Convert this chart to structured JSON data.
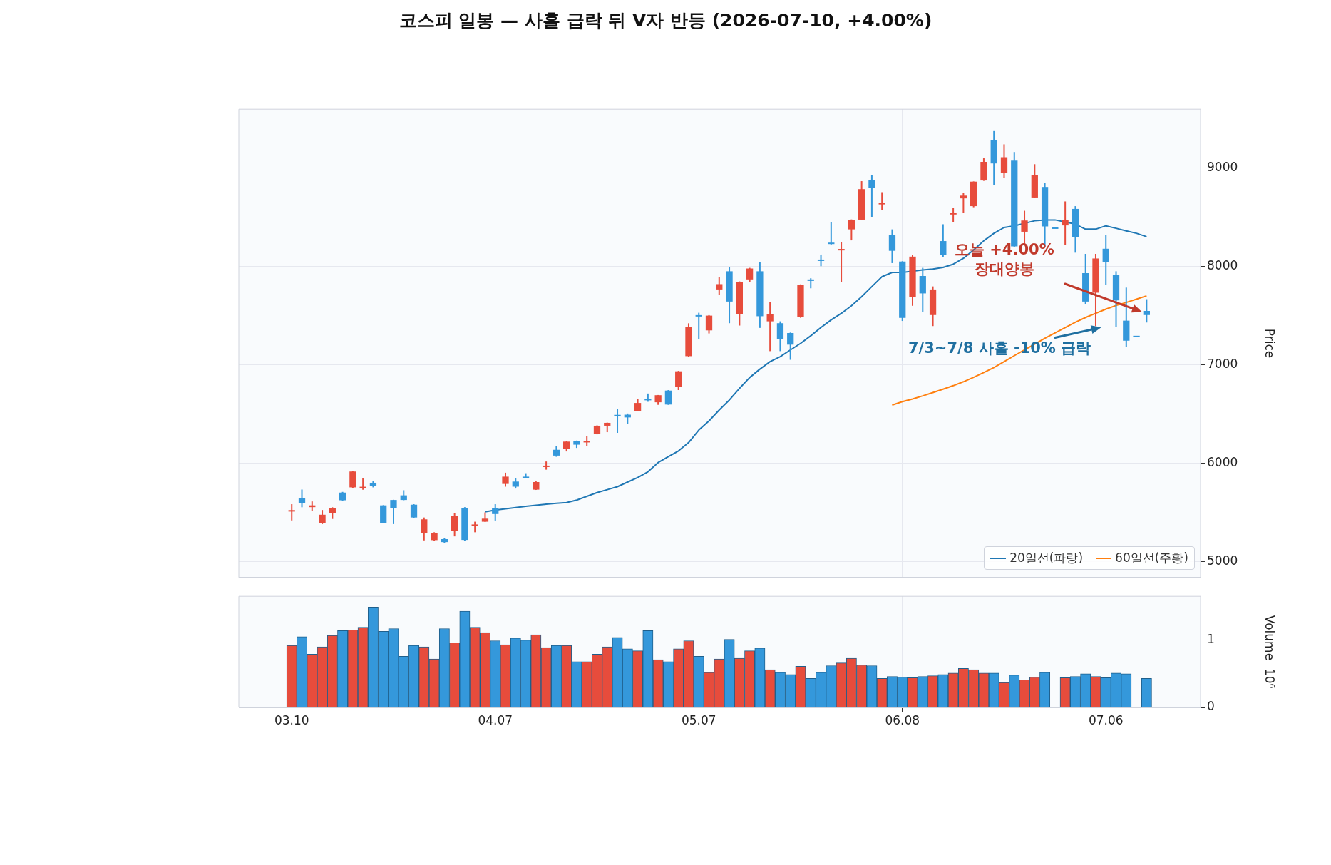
{
  "chart_data": [
    {
      "type": "candlestick",
      "title": "코스피 일봉 — 사흘 급락 뒤 V자 반등 (2026-07-10, +4.00%)",
      "ylabel": "Price",
      "categories": [
        "03.10",
        null,
        null,
        null,
        null,
        null,
        null,
        null,
        null,
        null,
        null,
        null,
        null,
        null,
        null,
        null,
        null,
        null,
        null,
        null,
        "04.07",
        null,
        null,
        null,
        null,
        null,
        null,
        null,
        null,
        null,
        null,
        null,
        null,
        null,
        null,
        null,
        null,
        null,
        null,
        null,
        "05.07",
        null,
        null,
        null,
        null,
        null,
        null,
        null,
        null,
        null,
        null,
        null,
        null,
        null,
        null,
        null,
        null,
        null,
        null,
        null,
        "06.08",
        null,
        null,
        null,
        null,
        null,
        null,
        null,
        null,
        null,
        null,
        null,
        null,
        null,
        null,
        null,
        null,
        null,
        null,
        null,
        "07.06",
        null,
        null,
        null,
        null
      ],
      "ohlc": [
        [
          5510,
          5585,
          5420,
          5525
        ],
        [
          5650,
          5734,
          5554,
          5597
        ],
        [
          5555,
          5613,
          5519,
          5573
        ],
        [
          5395,
          5526,
          5383,
          5478
        ],
        [
          5497,
          5554,
          5435,
          5545
        ],
        [
          5703,
          5710,
          5620,
          5625
        ],
        [
          5756,
          5920,
          5750,
          5917
        ],
        [
          5745,
          5846,
          5732,
          5755
        ],
        [
          5803,
          5822,
          5756,
          5768
        ],
        [
          5573,
          5575,
          5390,
          5395
        ],
        [
          5628,
          5630,
          5383,
          5545
        ],
        [
          5675,
          5727,
          5625,
          5628
        ],
        [
          5580,
          5585,
          5443,
          5450
        ],
        [
          5288,
          5450,
          5217,
          5431
        ],
        [
          5220,
          5300,
          5210,
          5290
        ],
        [
          5230,
          5240,
          5190,
          5200
        ],
        [
          5317,
          5497,
          5258,
          5466
        ],
        [
          5545,
          5555,
          5210,
          5222
        ],
        [
          5360,
          5407,
          5300,
          5372
        ],
        [
          5407,
          5502,
          5405,
          5438
        ],
        [
          5545,
          5585,
          5419,
          5485
        ],
        [
          5791,
          5905,
          5763,
          5865
        ],
        [
          5815,
          5846,
          5744,
          5763
        ],
        [
          5865,
          5900,
          5848,
          5850
        ],
        [
          5733,
          5817,
          5730,
          5810
        ],
        [
          5958,
          6019,
          5936,
          5970
        ],
        [
          6138,
          6174,
          6067,
          6079
        ],
        [
          6150,
          6225,
          6121,
          6221
        ],
        [
          6229,
          6232,
          6157,
          6190
        ],
        [
          6208,
          6276,
          6174,
          6220
        ],
        [
          6298,
          6386,
          6295,
          6383
        ],
        [
          6383,
          6414,
          6317,
          6412
        ],
        [
          6486,
          6555,
          6310,
          6480
        ],
        [
          6495,
          6507,
          6400,
          6467
        ],
        [
          6531,
          6655,
          6528,
          6614
        ],
        [
          6648,
          6710,
          6626,
          6642
        ],
        [
          6621,
          6695,
          6595,
          6693
        ],
        [
          6740,
          6745,
          6595,
          6598
        ],
        [
          6781,
          6940,
          6745,
          6936
        ],
        [
          7090,
          7424,
          7085,
          7383
        ],
        [
          7500,
          7531,
          7264,
          7490
        ],
        [
          7352,
          7507,
          7321,
          7502
        ],
        [
          7768,
          7898,
          7716,
          7822
        ],
        [
          7953,
          7995,
          7425,
          7645
        ],
        [
          7515,
          7850,
          7401,
          7846
        ],
        [
          7870,
          7988,
          7846,
          7981
        ],
        [
          7953,
          8047,
          7377,
          7496
        ],
        [
          7444,
          7638,
          7141,
          7519
        ],
        [
          7425,
          7444,
          7141,
          7266
        ],
        [
          7325,
          7330,
          7053,
          7207
        ],
        [
          7486,
          7820,
          7480,
          7815
        ],
        [
          7870,
          7882,
          7780,
          7855
        ],
        [
          8065,
          8123,
          8005,
          8052
        ],
        [
          8237,
          8450,
          8225,
          8230
        ],
        [
          8165,
          8253,
          7841,
          8180
        ],
        [
          8379,
          8480,
          8267,
          8478
        ],
        [
          8478,
          8869,
          8475,
          8788
        ],
        [
          8881,
          8928,
          8504,
          8800
        ],
        [
          8628,
          8757,
          8575,
          8640
        ],
        [
          8320,
          8379,
          8036,
          8161
        ],
        [
          8052,
          8055,
          7448,
          7479
        ],
        [
          7692,
          8118,
          7602,
          8102
        ],
        [
          7905,
          7988,
          7538,
          7728
        ],
        [
          7508,
          7799,
          7396,
          7768
        ],
        [
          8260,
          8431,
          8095,
          8118
        ],
        [
          8530,
          8599,
          8450,
          8545
        ],
        [
          8694,
          8746,
          8544,
          8722
        ],
        [
          8615,
          8866,
          8604,
          8864
        ],
        [
          8876,
          9101,
          8872,
          9065
        ],
        [
          9283,
          9378,
          8833,
          9049
        ],
        [
          8954,
          9243,
          8904,
          9112
        ],
        [
          9077,
          9165,
          8200,
          8206
        ],
        [
          8355,
          8568,
          8220,
          8469
        ],
        [
          8703,
          9041,
          8700,
          8928
        ],
        [
          8810,
          8852,
          8201,
          8409
        ],
        [
          8391,
          8391,
          8391,
          8391
        ],
        [
          8419,
          8663,
          8220,
          8473
        ],
        [
          8587,
          8615,
          8142,
          8303
        ],
        [
          7934,
          8130,
          7621,
          7645
        ],
        [
          7735,
          8130,
          7396,
          8083
        ],
        [
          8182,
          8320,
          7818,
          8047
        ],
        [
          7917,
          7953,
          7389,
          7657
        ],
        [
          7451,
          7787,
          7183,
          7247
        ],
        [
          7290,
          7290,
          7290,
          7290
        ],
        [
          7550,
          7669,
          7432,
          7508
        ]
      ],
      "colors": [
        "#e74c3c",
        "#3498db",
        "#e74c3c",
        "#e74c3c",
        "#e74c3c",
        "#3498db",
        "#e74c3c",
        "#e74c3c",
        "#3498db",
        "#3498db",
        "#3498db",
        "#3498db",
        "#3498db",
        "#e74c3c",
        "#e74c3c",
        "#3498db",
        "#e74c3c",
        "#3498db",
        "#e74c3c",
        "#e74c3c",
        "#3498db",
        "#e74c3c",
        "#3498db",
        "#3498db",
        "#e74c3c",
        "#e74c3c",
        "#3498db",
        "#e74c3c",
        "#3498db",
        "#e74c3c",
        "#e74c3c",
        "#e74c3c",
        "#3498db",
        "#3498db",
        "#e74c3c",
        "#3498db",
        "#e74c3c",
        "#3498db",
        "#e74c3c",
        "#e74c3c",
        "#3498db",
        "#e74c3c",
        "#e74c3c",
        "#3498db",
        "#e74c3c",
        "#e74c3c",
        "#3498db",
        "#e74c3c",
        "#3498db",
        "#3498db",
        "#e74c3c",
        "#3498db",
        "#3498db",
        "#3498db",
        "#e74c3c",
        "#e74c3c",
        "#e74c3c",
        "#3498db",
        "#e74c3c",
        "#3498db",
        "#3498db",
        "#e74c3c",
        "#3498db",
        "#e74c3c",
        "#3498db",
        "#e74c3c",
        "#e74c3c",
        "#e74c3c",
        "#e74c3c",
        "#3498db",
        "#e74c3c",
        "#3498db",
        "#e74c3c",
        "#e74c3c",
        "#3498db",
        "#3498db",
        "#e74c3c",
        "#3498db",
        "#3498db",
        "#e74c3c",
        "#3498db",
        "#3498db",
        "#3498db",
        "#3498db",
        "#3498db"
      ],
      "series": [
        {
          "name": "20일선(파랑)",
          "type": "line",
          "color": "#1f77b4",
          "values": [
            null,
            null,
            null,
            null,
            null,
            null,
            null,
            null,
            null,
            null,
            null,
            null,
            null,
            null,
            null,
            null,
            null,
            null,
            null,
            5508,
            5525,
            5538,
            5551,
            5563,
            5575,
            5585,
            5594,
            5602,
            5627,
            5665,
            5703,
            5733,
            5763,
            5810,
            5856,
            5915,
            6008,
            6068,
            6127,
            6212,
            6339,
            6432,
            6542,
            6644,
            6763,
            6873,
            6958,
            7034,
            7085,
            7153,
            7220,
            7297,
            7381,
            7458,
            7525,
            7602,
            7695,
            7797,
            7898,
            7941,
            7941,
            null,
            7966,
            7975,
            7992,
            8025,
            8085,
            8169,
            8263,
            8339,
            8398,
            8415,
            null,
            8466,
            8475,
            8475,
            null,
            8432,
            8381,
            8381,
            8415,
            8390,
            8364,
            8339,
            8305
          ]
        },
        {
          "name": "60일선(주황)",
          "type": "line",
          "color": "#ff7f0e",
          "values": [
            null,
            null,
            null,
            null,
            null,
            null,
            null,
            null,
            null,
            null,
            null,
            null,
            null,
            null,
            null,
            null,
            null,
            null,
            null,
            null,
            null,
            null,
            null,
            null,
            null,
            null,
            null,
            null,
            null,
            null,
            null,
            null,
            null,
            null,
            null,
            null,
            null,
            null,
            null,
            null,
            null,
            null,
            null,
            null,
            null,
            null,
            null,
            null,
            null,
            null,
            null,
            null,
            null,
            null,
            null,
            null,
            null,
            null,
            null,
            6593,
            6627,
            6655,
            6686,
            6720,
            6754,
            6790,
            6830,
            6875,
            6924,
            6975,
            7034,
            7095,
            7153,
            7212,
            7271,
            7326,
            7381,
            7435,
            7483,
            7525,
            7568,
            7605,
            7636,
            7670,
            7703
          ]
        }
      ],
      "ylim": [
        4840,
        9600
      ],
      "yticks": [
        5000,
        6000,
        7000,
        8000,
        9000
      ],
      "grid": true,
      "legend": "bottom right",
      "tick_labels": "y",
      "annotations": [
        "오늘 +4.00%\n장대양봉",
        "7/3~7/8 사흘 -10% 급락"
      ]
    },
    {
      "type": "bar",
      "ylabel": "Volume  10⁶",
      "categories": [
        "03.10",
        null,
        null,
        null,
        null,
        null,
        null,
        null,
        null,
        null,
        null,
        null,
        null,
        null,
        null,
        null,
        null,
        null,
        null,
        null,
        "04.07",
        null,
        null,
        null,
        null,
        null,
        null,
        null,
        null,
        null,
        null,
        null,
        null,
        null,
        null,
        null,
        null,
        null,
        null,
        null,
        "05.07",
        null,
        null,
        null,
        null,
        null,
        null,
        null,
        null,
        null,
        null,
        null,
        null,
        null,
        null,
        null,
        null,
        null,
        null,
        null,
        "06.08",
        null,
        null,
        null,
        null,
        null,
        null,
        null,
        null,
        null,
        null,
        null,
        null,
        null,
        null,
        null,
        null,
        null,
        null,
        null,
        "07.06",
        null,
        null,
        null,
        null
      ],
      "values": [
        0.92,
        1.05,
        0.79,
        0.9,
        1.07,
        1.14,
        1.15,
        1.19,
        1.49,
        1.13,
        1.17,
        0.76,
        0.92,
        0.9,
        0.72,
        1.17,
        0.96,
        1.43,
        1.19,
        1.11,
        0.99,
        0.93,
        1.03,
        1.0,
        1.08,
        0.89,
        0.92,
        0.92,
        0.68,
        0.68,
        0.79,
        0.9,
        1.04,
        0.87,
        0.84,
        1.14,
        0.71,
        0.68,
        0.87,
        0.99,
        0.76,
        0.52,
        0.72,
        1.01,
        0.73,
        0.84,
        0.88,
        0.56,
        0.52,
        0.49,
        0.61,
        0.43,
        0.52,
        0.62,
        0.66,
        0.73,
        0.63,
        0.62,
        0.43,
        0.46,
        0.45,
        0.44,
        0.46,
        0.47,
        0.49,
        0.51,
        0.58,
        0.56,
        0.51,
        0.51,
        0.37,
        0.48,
        0.41,
        0.45,
        0.52,
        null,
        0.44,
        0.46,
        0.5,
        0.46,
        0.44,
        0.51,
        0.5,
        null,
        0.43
      ],
      "colors": [
        "#e74c3c",
        "#3498db",
        "#e74c3c",
        "#e74c3c",
        "#e74c3c",
        "#3498db",
        "#e74c3c",
        "#e74c3c",
        "#3498db",
        "#3498db",
        "#3498db",
        "#3498db",
        "#3498db",
        "#e74c3c",
        "#e74c3c",
        "#3498db",
        "#e74c3c",
        "#3498db",
        "#e74c3c",
        "#e74c3c",
        "#3498db",
        "#e74c3c",
        "#3498db",
        "#3498db",
        "#e74c3c",
        "#e74c3c",
        "#3498db",
        "#e74c3c",
        "#3498db",
        "#e74c3c",
        "#e74c3c",
        "#e74c3c",
        "#3498db",
        "#3498db",
        "#e74c3c",
        "#3498db",
        "#e74c3c",
        "#3498db",
        "#e74c3c",
        "#e74c3c",
        "#3498db",
        "#e74c3c",
        "#e74c3c",
        "#3498db",
        "#e74c3c",
        "#e74c3c",
        "#3498db",
        "#e74c3c",
        "#3498db",
        "#3498db",
        "#e74c3c",
        "#3498db",
        "#3498db",
        "#3498db",
        "#e74c3c",
        "#e74c3c",
        "#e74c3c",
        "#3498db",
        "#e74c3c",
        "#3498db",
        "#3498db",
        "#e74c3c",
        "#3498db",
        "#e74c3c",
        "#3498db",
        "#e74c3c",
        "#e74c3c",
        "#e74c3c",
        "#e74c3c",
        "#3498db",
        "#e74c3c",
        "#3498db",
        "#e74c3c",
        "#e74c3c",
        "#3498db",
        "#3498db",
        "#e74c3c",
        "#3498db",
        "#3498db",
        "#e74c3c",
        "#3498db",
        "#3498db",
        "#3498db",
        "#3498db",
        "#3498db"
      ],
      "ylim": [
        0,
        1.65
      ],
      "yticks": [
        0,
        1
      ],
      "grid": true
    }
  ]
}
